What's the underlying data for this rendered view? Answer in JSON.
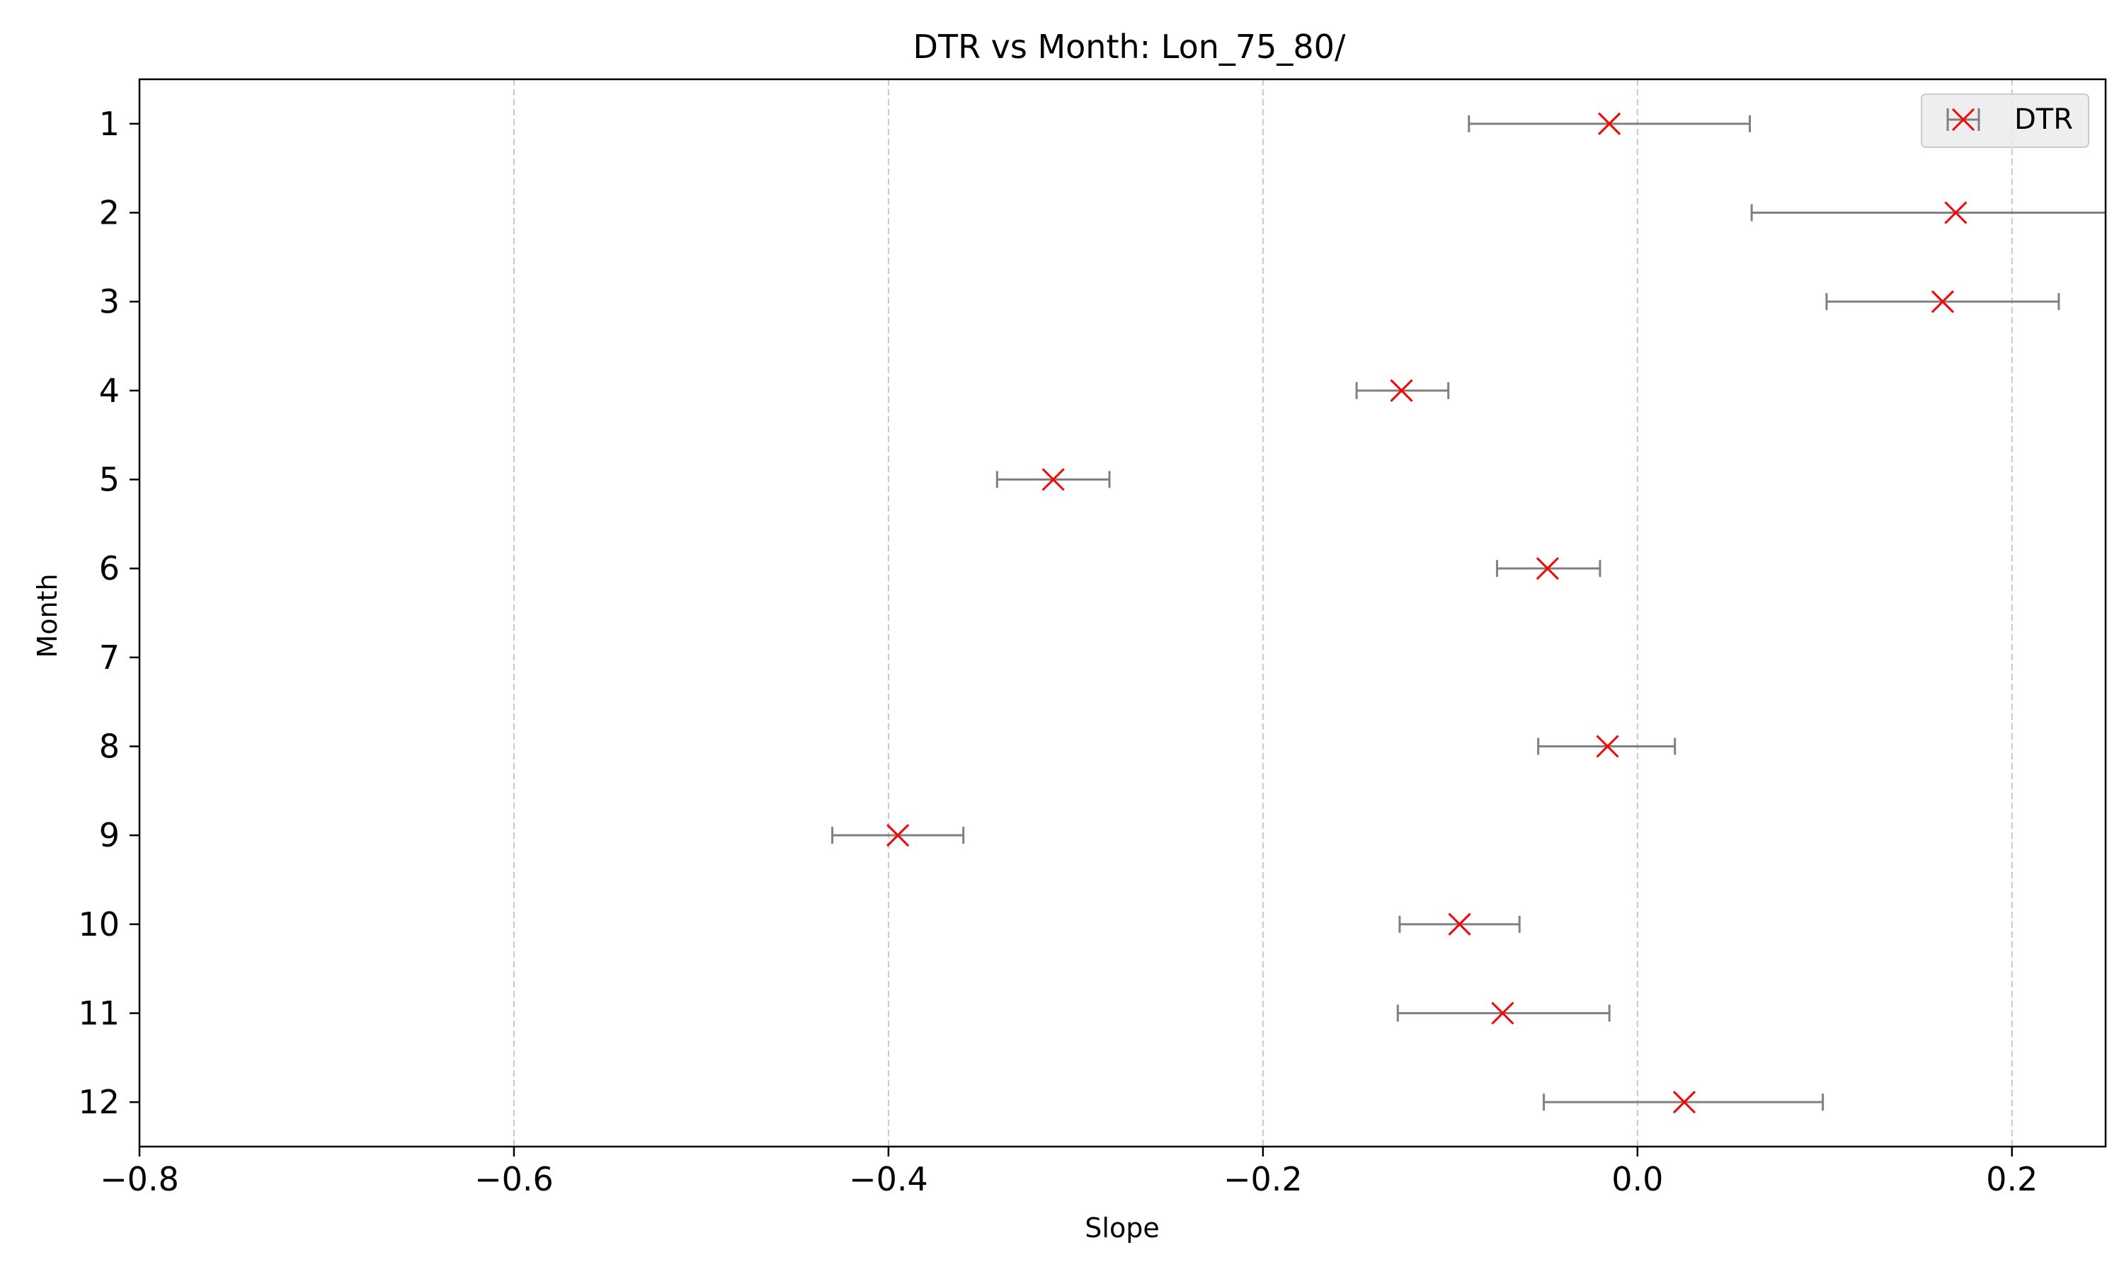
{
  "chart_data": {
    "type": "scatter",
    "title": "DTR vs Month: Lon_75_80/",
    "xlabel": "Slope",
    "ylabel": "Month",
    "xlim": [
      -0.8,
      0.25
    ],
    "ylim": [
      12.5,
      0.5
    ],
    "xticks": [
      -0.8,
      -0.6,
      -0.4,
      -0.2,
      0.0,
      0.2
    ],
    "xtick_labels": [
      "−0.8",
      "−0.6",
      "−0.4",
      "−0.2",
      "0.0",
      "0.2"
    ],
    "yticks": [
      1,
      2,
      3,
      4,
      5,
      6,
      7,
      8,
      9,
      10,
      11,
      12
    ],
    "ytick_labels": [
      "1",
      "2",
      "3",
      "4",
      "5",
      "6",
      "7",
      "8",
      "9",
      "10",
      "11",
      "12"
    ],
    "grid": "x-axis dashed",
    "legend_position": "top-right",
    "marker_color": "#ff0000",
    "errorbar_color": "#808080",
    "series": [
      {
        "name": "DTR",
        "marker": "x",
        "points": [
          {
            "month": 1,
            "slope": -0.015,
            "err_low": -0.09,
            "err_high": 0.06
          },
          {
            "month": 2,
            "slope": 0.17,
            "err_low": 0.061,
            "err_high": 0.28
          },
          {
            "month": 3,
            "slope": 0.163,
            "err_low": 0.101,
            "err_high": 0.225
          },
          {
            "month": 4,
            "slope": -0.126,
            "err_low": -0.15,
            "err_high": -0.101
          },
          {
            "month": 5,
            "slope": -0.312,
            "err_low": -0.342,
            "err_high": -0.282
          },
          {
            "month": 6,
            "slope": -0.048,
            "err_low": -0.075,
            "err_high": -0.02
          },
          {
            "month": 8,
            "slope": -0.016,
            "err_low": -0.053,
            "err_high": 0.02
          },
          {
            "month": 9,
            "slope": -0.395,
            "err_low": -0.43,
            "err_high": -0.36
          },
          {
            "month": 10,
            "slope": -0.095,
            "err_low": -0.127,
            "err_high": -0.063
          },
          {
            "month": 11,
            "slope": -0.072,
            "err_low": -0.128,
            "err_high": -0.015
          },
          {
            "month": 12,
            "slope": 0.025,
            "err_low": -0.05,
            "err_high": 0.099
          }
        ]
      }
    ]
  }
}
